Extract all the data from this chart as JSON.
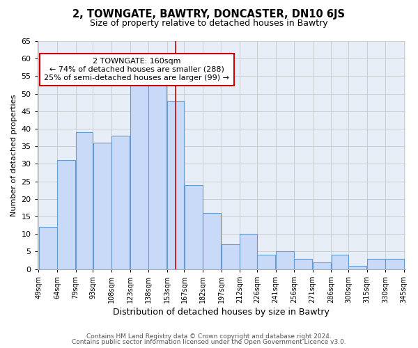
{
  "title": "2, TOWNGATE, BAWTRY, DONCASTER, DN10 6JS",
  "subtitle": "Size of property relative to detached houses in Bawtry",
  "xlabel": "Distribution of detached houses by size in Bawtry",
  "ylabel": "Number of detached properties",
  "bar_left_edges": [
    49,
    64,
    79,
    93,
    108,
    123,
    138,
    153,
    167,
    182,
    197,
    212,
    226,
    241,
    256,
    271,
    286,
    300,
    315,
    330
  ],
  "bar_widths": [
    15,
    15,
    14,
    15,
    15,
    15,
    15,
    14,
    15,
    15,
    15,
    14,
    15,
    15,
    15,
    15,
    14,
    15,
    15,
    15
  ],
  "bar_heights": [
    12,
    31,
    39,
    36,
    38,
    53,
    54,
    48,
    24,
    16,
    7,
    10,
    4,
    5,
    3,
    2,
    4,
    1,
    3,
    3
  ],
  "tick_labels": [
    "49sqm",
    "64sqm",
    "79sqm",
    "93sqm",
    "108sqm",
    "123sqm",
    "138sqm",
    "153sqm",
    "167sqm",
    "182sqm",
    "197sqm",
    "212sqm",
    "226sqm",
    "241sqm",
    "256sqm",
    "271sqm",
    "286sqm",
    "300sqm",
    "315sqm",
    "330sqm",
    "345sqm"
  ],
  "bar_color": "#c9daf8",
  "bar_edge_color": "#6699cc",
  "grid_color": "#cccccc",
  "vline_x": 160,
  "vline_color": "#cc0000",
  "annotation_box_edge": "#cc0000",
  "annotation_title": "2 TOWNGATE: 160sqm",
  "annotation_line1": "← 74% of detached houses are smaller (288)",
  "annotation_line2": "25% of semi-detached houses are larger (99) →",
  "ylim": [
    0,
    65
  ],
  "yticks": [
    0,
    5,
    10,
    15,
    20,
    25,
    30,
    35,
    40,
    45,
    50,
    55,
    60,
    65
  ],
  "footer_line1": "Contains HM Land Registry data © Crown copyright and database right 2024.",
  "footer_line2": "Contains public sector information licensed under the Open Government Licence v3.0.",
  "background_color": "#ffffff",
  "plot_bg_color": "#e8eef8"
}
